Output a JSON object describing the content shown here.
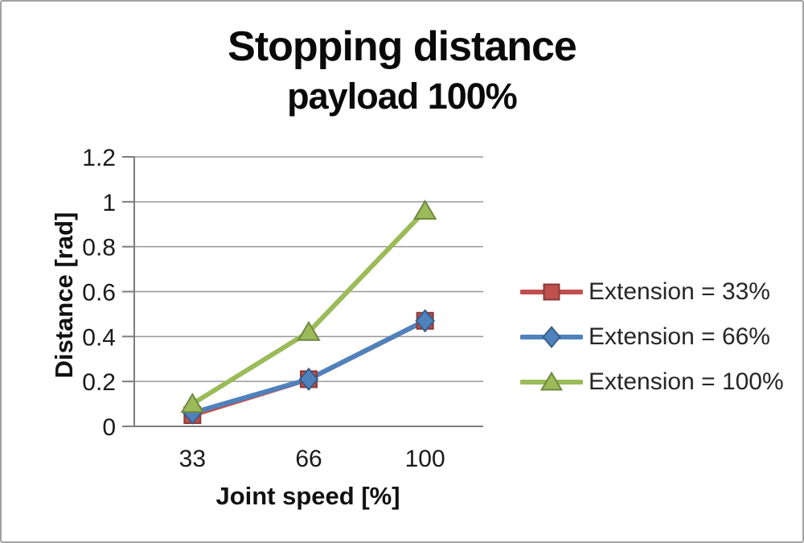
{
  "chart_data": {
    "type": "line",
    "title": "Stopping distance",
    "subtitle": "payload 100%",
    "xlabel": "Joint speed [%]",
    "ylabel": "Distance [rad]",
    "categories": [
      "33",
      "66",
      "100"
    ],
    "y_ticks": [
      "0",
      "0.2",
      "0.4",
      "0.6",
      "0.8",
      "1",
      "1.2"
    ],
    "ylim": [
      0,
      1.2
    ],
    "grid": "horizontal",
    "legend_position": "right",
    "series": [
      {
        "name": "Extension = 33%",
        "marker": "square",
        "color": "#c0504d",
        "values": [
          0.05,
          0.21,
          0.47
        ]
      },
      {
        "name": "Extension = 66%",
        "marker": "diamond",
        "color": "#4f81bd",
        "values": [
          0.06,
          0.21,
          0.47
        ]
      },
      {
        "name": "Extension = 100%",
        "marker": "triangle",
        "color": "#9bbb59",
        "values": [
          0.1,
          0.42,
          0.96
        ]
      }
    ],
    "colors": {
      "gridline": "#989898",
      "axis": "#7d7d7d",
      "tick_label": "#1a1a1a",
      "title": "#0a0a0a",
      "legend_text": "#262626",
      "frame_border": "#a2a2a2",
      "background": "#ffffff"
    }
  }
}
